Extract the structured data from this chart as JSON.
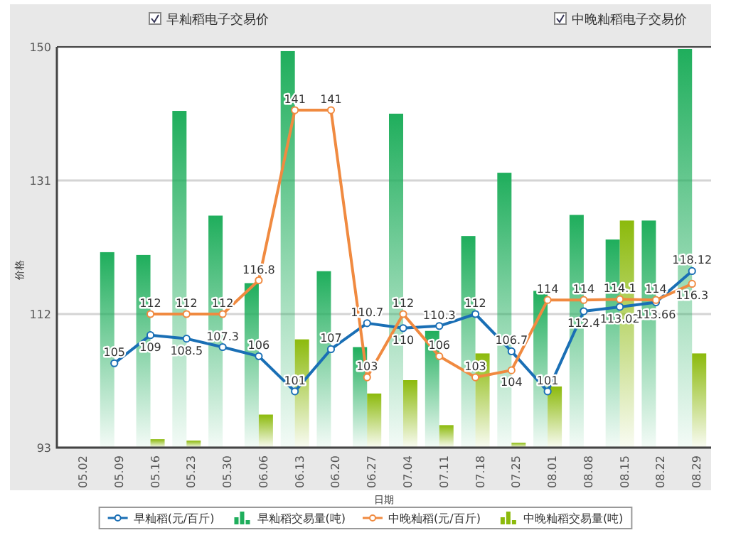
{
  "chart_data": {
    "type": "bar",
    "xlabel": "日期",
    "ylabel": "价格",
    "ylim": [
      93,
      150
    ],
    "yticks": [
      93,
      112,
      131,
      150
    ],
    "grid": "y",
    "legend": "bottom",
    "annotations": [
      "早籼稻电子交易价",
      "中晚籼稻电子交易价"
    ],
    "categories": [
      "05.02",
      "05.09",
      "05.16",
      "05.23",
      "05.30",
      "06.06",
      "06.13",
      "06.20",
      "06.27",
      "07.04",
      "07.11",
      "07.18",
      "07.25",
      "08.01",
      "08.08",
      "08.15",
      "08.22",
      "08.29"
    ],
    "series": [
      {
        "name": "早籼稻(元/百斤)",
        "type": "line",
        "color": "#1a6fb5",
        "marker": "circle",
        "data_labels": true,
        "values": [
          null,
          105,
          109,
          108.5,
          107.3,
          106,
          101,
          107,
          110.7,
          110,
          110.3,
          112,
          106.7,
          101,
          112.4,
          113.02,
          113.66,
          118.12
        ]
      },
      {
        "name": "早籼稻交易量(吨)",
        "color": "#1fae5c",
        "values": [
          null,
          120.8,
          120.4,
          140.9,
          126.0,
          116.4,
          149.4,
          118.1,
          107.3,
          140.5,
          109.6,
          123.1,
          132.1,
          115.3,
          126.1,
          122.6,
          125.3,
          149.7
        ]
      },
      {
        "name": "中晚籼稻(元/百斤)",
        "type": "line",
        "color": "#f08a40",
        "marker": "circle",
        "data_labels": true,
        "values": [
          null,
          null,
          112,
          112,
          112,
          116.8,
          141,
          141,
          103,
          112,
          106,
          103,
          104,
          114,
          114,
          114.1,
          114,
          116.3
        ]
      },
      {
        "name": "中晚籼稻交易量(吨)",
        "color": "#8cba0c",
        "values": [
          null,
          null,
          94.2,
          94.0,
          null,
          97.7,
          108.4,
          null,
          100.7,
          102.6,
          96.2,
          106.4,
          93.7,
          101.7,
          null,
          125.3,
          null,
          106.4
        ]
      }
    ]
  }
}
